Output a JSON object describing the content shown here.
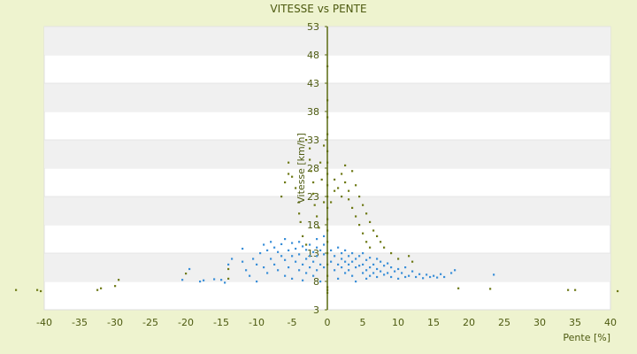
{
  "chart_data": {
    "type": "scatter",
    "title": "VITESSE vs PENTE",
    "xlabel": "Pente [%]",
    "ylabel": "Vitesse [km/h]",
    "xlim": [
      -40,
      40
    ],
    "ylim": [
      3,
      53
    ],
    "xticks": [
      -40,
      -35,
      -30,
      -25,
      -20,
      -15,
      -10,
      -5,
      0,
      5,
      10,
      15,
      20,
      25,
      30,
      35,
      40
    ],
    "yticks": [
      3,
      8,
      13,
      18,
      23,
      28,
      33,
      38,
      43,
      48,
      53
    ],
    "ytick_labels": [
      "3",
      "8",
      "13",
      "18",
      "23",
      "28",
      "33",
      "38",
      "43",
      "48",
      "53"
    ],
    "grid": "horizontal bands",
    "legend": "none",
    "colors": {
      "series_1": "#6e7a16",
      "series_2": "#3a8fd8",
      "band": "#f0f0f0",
      "plot_bg": "#ffffff",
      "page_bg": "#eef3cf",
      "axis": "#5a6a10"
    },
    "series": [
      {
        "color": "#6e7a16",
        "points": [
          [
            -44,
            6.5
          ],
          [
            -41,
            6.5
          ],
          [
            -40.5,
            6.3
          ],
          [
            -32.5,
            6.5
          ],
          [
            -32,
            6.8
          ],
          [
            -30,
            7.2
          ],
          [
            -29.5,
            8.3
          ],
          [
            -20,
            9.4
          ],
          [
            -14,
            10.2
          ],
          [
            -14,
            8.5
          ],
          [
            -6.5,
            23
          ],
          [
            -6,
            25.5
          ],
          [
            -5.5,
            27
          ],
          [
            -5.5,
            29
          ],
          [
            -5,
            26.5
          ],
          [
            -4.5,
            24.5
          ],
          [
            -4,
            22
          ],
          [
            -4,
            20
          ],
          [
            -3.8,
            18.5
          ],
          [
            -3.5,
            16
          ],
          [
            -3,
            14.5
          ],
          [
            -3,
            33
          ],
          [
            -2.5,
            31.5
          ],
          [
            -2.5,
            29.5
          ],
          [
            -2.3,
            27.5
          ],
          [
            -2,
            25.5
          ],
          [
            -2,
            23.5
          ],
          [
            -1.8,
            21.5
          ],
          [
            -1.5,
            19.5
          ],
          [
            -1.2,
            17.5
          ],
          [
            -1,
            29
          ],
          [
            -0.8,
            26
          ],
          [
            -0.5,
            22
          ],
          [
            -0.5,
            32
          ],
          [
            0,
            46
          ],
          [
            0,
            40
          ],
          [
            0,
            37
          ],
          [
            0,
            34
          ],
          [
            0,
            31
          ],
          [
            0,
            29
          ],
          [
            0,
            27
          ],
          [
            0,
            25
          ],
          [
            0,
            23
          ],
          [
            0,
            21
          ],
          [
            0,
            19
          ],
          [
            0,
            17
          ],
          [
            0,
            15
          ],
          [
            0,
            13
          ],
          [
            0,
            11
          ],
          [
            0,
            9
          ],
          [
            0,
            7
          ],
          [
            0,
            6.5
          ],
          [
            0,
            6
          ],
          [
            0.5,
            22
          ],
          [
            1,
            24
          ],
          [
            1,
            26
          ],
          [
            1.5,
            24.5
          ],
          [
            2,
            23
          ],
          [
            2,
            27
          ],
          [
            2.5,
            28.5
          ],
          [
            2.5,
            25.5
          ],
          [
            3,
            24
          ],
          [
            3,
            22.5
          ],
          [
            3.5,
            21
          ],
          [
            3.5,
            27.5
          ],
          [
            4,
            25
          ],
          [
            4,
            19.5
          ],
          [
            4.5,
            23
          ],
          [
            4.5,
            18
          ],
          [
            5,
            21.5
          ],
          [
            5,
            16.5
          ],
          [
            5.5,
            20
          ],
          [
            5.5,
            15
          ],
          [
            6,
            18.5
          ],
          [
            6,
            14
          ],
          [
            6.5,
            17
          ],
          [
            7,
            16
          ],
          [
            7.5,
            15
          ],
          [
            8,
            14
          ],
          [
            9,
            13
          ],
          [
            10,
            12
          ],
          [
            11.5,
            12.5
          ],
          [
            12,
            11.5
          ],
          [
            18.5,
            6.8
          ],
          [
            23,
            6.7
          ],
          [
            34,
            6.5
          ],
          [
            35,
            6.5
          ],
          [
            41,
            6.3
          ]
        ]
      },
      {
        "color": "#3a8fd8",
        "points": [
          [
            -20.5,
            8.3
          ],
          [
            -19.5,
            10.2
          ],
          [
            -18,
            8
          ],
          [
            -17.5,
            8.2
          ],
          [
            -16,
            8.4
          ],
          [
            -15,
            8.3
          ],
          [
            -14.5,
            7.8
          ],
          [
            -14,
            11
          ],
          [
            -13.5,
            12
          ],
          [
            -12,
            13.8
          ],
          [
            -12,
            11.5
          ],
          [
            -11.5,
            10
          ],
          [
            -11,
            9
          ],
          [
            -10.5,
            12
          ],
          [
            -10,
            8
          ],
          [
            -10,
            11
          ],
          [
            -9.5,
            13
          ],
          [
            -9,
            14.5
          ],
          [
            -9,
            10.5
          ],
          [
            -8.5,
            9.5
          ],
          [
            -8.5,
            13.5
          ],
          [
            -8,
            15
          ],
          [
            -8,
            12
          ],
          [
            -7.5,
            14
          ],
          [
            -7.5,
            11
          ],
          [
            -7,
            13.2
          ],
          [
            -7,
            10
          ],
          [
            -6.5,
            14.6
          ],
          [
            -6.5,
            12.5
          ],
          [
            -6,
            15.5
          ],
          [
            -6,
            11.8
          ],
          [
            -6,
            9
          ],
          [
            -5.5,
            13.5
          ],
          [
            -5.5,
            10.5
          ],
          [
            -5,
            14.8
          ],
          [
            -5,
            12.5
          ],
          [
            -5,
            8.5
          ],
          [
            -4.5,
            13.8
          ],
          [
            -4.5,
            11.5
          ],
          [
            -4,
            15
          ],
          [
            -4,
            12.8
          ],
          [
            -4,
            10
          ],
          [
            -3.5,
            14.2
          ],
          [
            -3.5,
            11
          ],
          [
            -3.5,
            8.2
          ],
          [
            -3,
            13.6
          ],
          [
            -3,
            12
          ],
          [
            -3,
            9.5
          ],
          [
            -2.5,
            14.5
          ],
          [
            -2.5,
            12.5
          ],
          [
            -2.5,
            10.5
          ],
          [
            -2,
            13.2
          ],
          [
            -2,
            11.5
          ],
          [
            -2,
            9
          ],
          [
            -1.5,
            15.5
          ],
          [
            -1.5,
            14
          ],
          [
            -1.5,
            12.5
          ],
          [
            -1.5,
            10
          ],
          [
            -1,
            13.5
          ],
          [
            -1,
            11
          ],
          [
            -1,
            8
          ],
          [
            -0.5,
            14.5
          ],
          [
            -0.5,
            12.8
          ],
          [
            -0.5,
            10.5
          ],
          [
            -0.5,
            16
          ],
          [
            0.5,
            13.5
          ],
          [
            0.5,
            11.5
          ],
          [
            1,
            12.5
          ],
          [
            1,
            10
          ],
          [
            1.5,
            14
          ],
          [
            1.5,
            11
          ],
          [
            1.5,
            8.5
          ],
          [
            2,
            13
          ],
          [
            2,
            12
          ],
          [
            2,
            10.5
          ],
          [
            2.5,
            13.5
          ],
          [
            2.5,
            11.5
          ],
          [
            2.5,
            9.5
          ],
          [
            3,
            12.5
          ],
          [
            3,
            11
          ],
          [
            3,
            10
          ],
          [
            3.5,
            13
          ],
          [
            3.5,
            11.5
          ],
          [
            3.5,
            9
          ],
          [
            4,
            12
          ],
          [
            4,
            10.5
          ],
          [
            4,
            8
          ],
          [
            4.5,
            12.5
          ],
          [
            4.5,
            10.8
          ],
          [
            5,
            13
          ],
          [
            5,
            11
          ],
          [
            5,
            9.5
          ],
          [
            5.5,
            11.8
          ],
          [
            5.5,
            10
          ],
          [
            5.5,
            8.5
          ],
          [
            6,
            12.2
          ],
          [
            6,
            10.5
          ],
          [
            6,
            9
          ],
          [
            6.5,
            11
          ],
          [
            6.5,
            9.5
          ],
          [
            7,
            12
          ],
          [
            7,
            10.2
          ],
          [
            7,
            8.8
          ],
          [
            7.5,
            11.5
          ],
          [
            7.5,
            9.8
          ],
          [
            8,
            10.8
          ],
          [
            8,
            9.2
          ],
          [
            8.5,
            11.2
          ],
          [
            8.5,
            9.5
          ],
          [
            9,
            10.5
          ],
          [
            9,
            8.8
          ],
          [
            9.5,
            9.8
          ],
          [
            10,
            10.2
          ],
          [
            10,
            8.5
          ],
          [
            10.5,
            9.5
          ],
          [
            11,
            10.5
          ],
          [
            11,
            8.8
          ],
          [
            11.5,
            9
          ],
          [
            12,
            9.8
          ],
          [
            12.5,
            8.8
          ],
          [
            13,
            9.3
          ],
          [
            13.5,
            8.6
          ],
          [
            14,
            9.2
          ],
          [
            14.5,
            8.8
          ],
          [
            15,
            9
          ],
          [
            15.5,
            8.7
          ],
          [
            16,
            9.3
          ],
          [
            16.5,
            8.8
          ],
          [
            17.5,
            9.5
          ],
          [
            18,
            10
          ],
          [
            23.5,
            9.2
          ]
        ]
      }
    ]
  }
}
